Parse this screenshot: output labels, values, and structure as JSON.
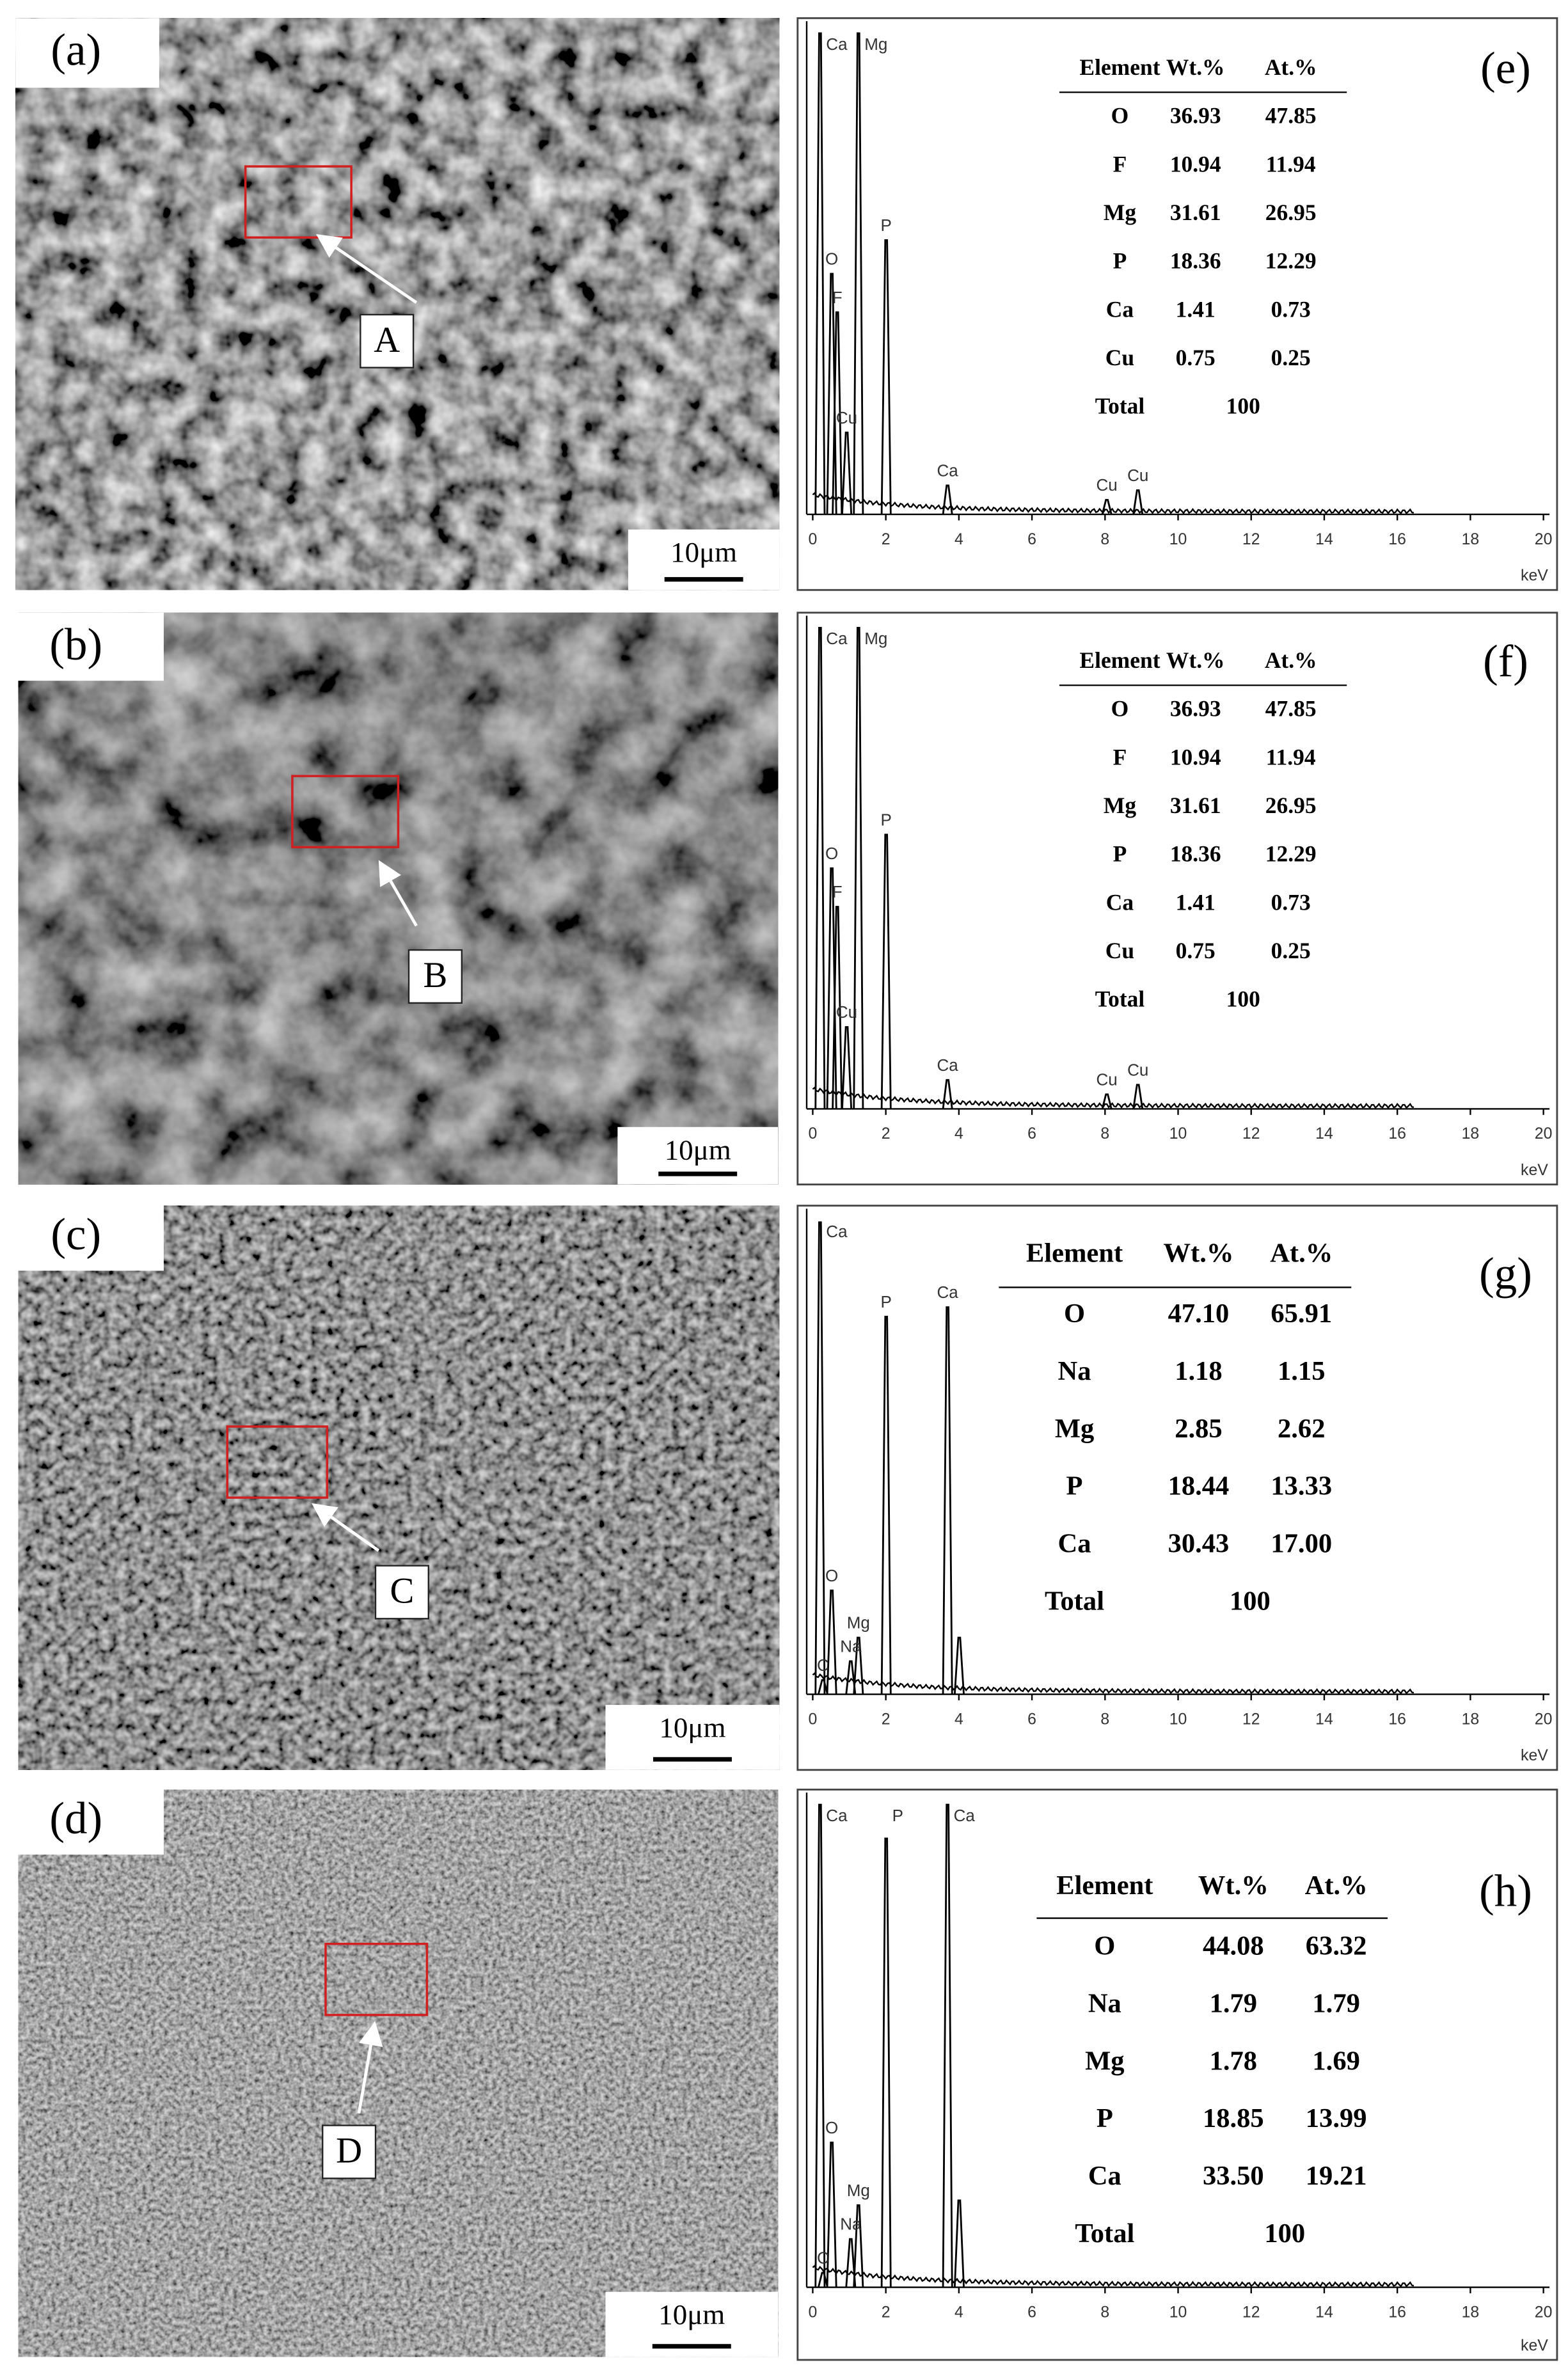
{
  "panels": [
    {
      "label": "(a)",
      "site": "A",
      "scale": "10μm"
    },
    {
      "label": "(b)",
      "site": "B",
      "scale": "10μm"
    },
    {
      "label": "(c)",
      "site": "C",
      "scale": "10μm"
    },
    {
      "label": "(d)",
      "site": "D",
      "scale": "10μm"
    }
  ],
  "spectra": [
    {
      "label": "(e)",
      "xlim": [
        0,
        20
      ],
      "xticks": [
        0,
        2,
        4,
        6,
        8,
        10,
        12,
        14,
        16,
        18,
        20
      ],
      "xlabel": "keV",
      "table": {
        "header": [
          "Element",
          "Wt.%",
          "At.%"
        ],
        "rows": [
          [
            "O",
            "36.93",
            "47.85"
          ],
          [
            "F",
            "10.94",
            "11.94"
          ],
          [
            "Mg",
            "31.61",
            "26.95"
          ],
          [
            "P",
            "18.36",
            "12.29"
          ],
          [
            "Ca",
            "1.41",
            "0.73"
          ],
          [
            "Cu",
            "0.75",
            "0.25"
          ]
        ],
        "total": [
          "Total",
          "100"
        ]
      },
      "peaks": [
        {
          "label": "Ca",
          "kev": 0.2,
          "height": 1.0
        },
        {
          "label": "Mg",
          "kev": 1.25,
          "height": 1.0
        },
        {
          "label": "O",
          "kev": 0.52,
          "height": 0.5
        },
        {
          "label": "F",
          "kev": 0.67,
          "height": 0.42
        },
        {
          "label": "Cu",
          "kev": 0.93,
          "height": 0.17
        },
        {
          "label": "P",
          "kev": 2.01,
          "height": 0.57
        },
        {
          "label": "Ca",
          "kev": 3.69,
          "height": 0.06
        },
        {
          "label": "Cu",
          "kev": 8.05,
          "height": 0.03
        },
        {
          "label": "Cu",
          "kev": 8.9,
          "height": 0.05
        }
      ]
    },
    {
      "label": "(f)",
      "xlim": [
        0,
        20
      ],
      "xticks": [
        0,
        2,
        4,
        6,
        8,
        10,
        12,
        14,
        16,
        18,
        20
      ],
      "xlabel": "keV",
      "table": {
        "header": [
          "Element",
          "Wt.%",
          "At.%"
        ],
        "rows": [
          [
            "O",
            "36.93",
            "47.85"
          ],
          [
            "F",
            "10.94",
            "11.94"
          ],
          [
            "Mg",
            "31.61",
            "26.95"
          ],
          [
            "P",
            "18.36",
            "12.29"
          ],
          [
            "Ca",
            "1.41",
            "0.73"
          ],
          [
            "Cu",
            "0.75",
            "0.25"
          ]
        ],
        "total": [
          "Total",
          "100"
        ]
      },
      "peaks": [
        {
          "label": "Ca",
          "kev": 0.2,
          "height": 1.0
        },
        {
          "label": "Mg",
          "kev": 1.25,
          "height": 1.0
        },
        {
          "label": "O",
          "kev": 0.52,
          "height": 0.5
        },
        {
          "label": "F",
          "kev": 0.67,
          "height": 0.42
        },
        {
          "label": "Cu",
          "kev": 0.93,
          "height": 0.17
        },
        {
          "label": "P",
          "kev": 2.01,
          "height": 0.57
        },
        {
          "label": "Ca",
          "kev": 3.69,
          "height": 0.06
        },
        {
          "label": "Cu",
          "kev": 8.05,
          "height": 0.03
        },
        {
          "label": "Cu",
          "kev": 8.9,
          "height": 0.05
        }
      ]
    },
    {
      "label": "(g)",
      "xlim": [
        0,
        20
      ],
      "xticks": [
        0,
        2,
        4,
        6,
        8,
        10,
        12,
        14,
        16,
        18,
        20
      ],
      "xlabel": "keV",
      "table": {
        "header": [
          "Element",
          "Wt.%",
          "At.%"
        ],
        "rows": [
          [
            "O",
            "47.10",
            "65.91"
          ],
          [
            "Na",
            "1.18",
            "1.15"
          ],
          [
            "Mg",
            "2.85",
            "2.62"
          ],
          [
            "P",
            "18.44",
            "13.33"
          ],
          [
            "Ca",
            "30.43",
            "17.00"
          ]
        ],
        "total": [
          "Total",
          "100"
        ]
      },
      "peaks": [
        {
          "label": "Ca",
          "kev": 0.2,
          "height": 1.0
        },
        {
          "label": "P",
          "kev": 2.01,
          "height": 0.8
        },
        {
          "label": "Ca",
          "kev": 3.69,
          "height": 0.82
        },
        {
          "label": "O",
          "kev": 0.52,
          "height": 0.22
        },
        {
          "label": "Mg",
          "kev": 1.25,
          "height": 0.12
        },
        {
          "label": "Na",
          "kev": 1.04,
          "height": 0.07
        },
        {
          "label": "C",
          "kev": 0.28,
          "height": 0.03
        },
        {
          "label": null,
          "kev": 4.01,
          "height": 0.12
        }
      ]
    },
    {
      "label": "(h)",
      "xlim": [
        0,
        20
      ],
      "xticks": [
        0,
        2,
        4,
        6,
        8,
        10,
        12,
        14,
        16,
        18,
        20
      ],
      "xlabel": "keV",
      "table": {
        "header": [
          "Element",
          "Wt.%",
          "At.%"
        ],
        "rows": [
          [
            "O",
            "44.08",
            "63.32"
          ],
          [
            "Na",
            "1.79",
            "1.79"
          ],
          [
            "Mg",
            "1.78",
            "1.69"
          ],
          [
            "P",
            "18.85",
            "13.99"
          ],
          [
            "Ca",
            "33.50",
            "19.21"
          ]
        ],
        "total": [
          "Total",
          "100"
        ]
      },
      "peaks": [
        {
          "label": "Ca",
          "kev": 0.2,
          "height": 1.0
        },
        {
          "label": "P",
          "kev": 2.01,
          "height": 0.93
        },
        {
          "label": "Ca",
          "kev": 3.69,
          "height": 1.0
        },
        {
          "label": "O",
          "kev": 0.52,
          "height": 0.3
        },
        {
          "label": "Mg",
          "kev": 1.25,
          "height": 0.17
        },
        {
          "label": "Na",
          "kev": 1.04,
          "height": 0.1
        },
        {
          "label": "C",
          "kev": 0.28,
          "height": 0.03
        },
        {
          "label": null,
          "kev": 4.01,
          "height": 0.18
        }
      ]
    }
  ]
}
